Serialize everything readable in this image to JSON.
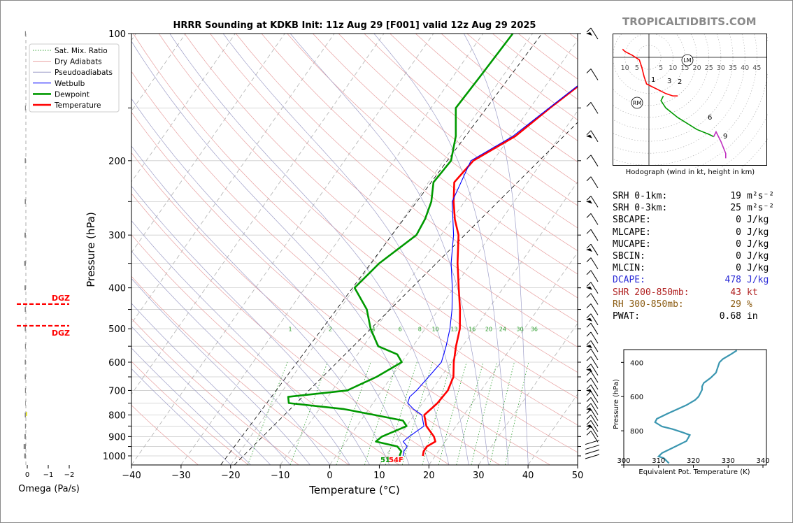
{
  "chart_data": {
    "type": "skew-t",
    "title": "HRRR Sounding at KDKB Init: 11z Aug 29 [F001] valid 12z Aug 29 2025",
    "xlabel": "Temperature (°C)",
    "ylabel": "Pressure (hPa)",
    "xlim": [
      -40,
      50
    ],
    "ylim": [
      1050,
      100
    ],
    "y_log_scale": true,
    "x_ticks": [
      -40,
      -30,
      -20,
      -10,
      0,
      10,
      20,
      30,
      40,
      50
    ],
    "x_tick_labels": [
      "−40",
      "−30",
      "−20",
      "−10",
      "0",
      "10",
      "20",
      "30",
      "40",
      "50"
    ],
    "y_ticks": [
      100,
      200,
      300,
      400,
      500,
      600,
      700,
      800,
      900,
      1000
    ],
    "legend_position": "top-left",
    "legend": [
      {
        "label": "Sat. Mix. Ratio",
        "color": "#2e9e2e"
      },
      {
        "label": "Dry Adiabats",
        "color": "#e8a0a0"
      },
      {
        "label": "Pseudoadiabats",
        "color": "#9e9ec8"
      },
      {
        "label": "Wetbulb",
        "color": "#0000ff"
      },
      {
        "label": "Dewpoint",
        "color": "#009900"
      },
      {
        "label": "Temperature",
        "color": "#ff0000"
      }
    ],
    "mixing_ratio_labels": [
      "1",
      "2",
      "4",
      "6",
      "8",
      "10",
      "13",
      "16",
      "20",
      "24",
      "30",
      "36"
    ],
    "surface_label_T": "54F",
    "surface_label_Td": "51",
    "series": [
      {
        "name": "Temperature",
        "color": "#ff0000",
        "points": [
          [
            1000,
            17.5
          ],
          [
            975,
            17
          ],
          [
            950,
            17
          ],
          [
            925,
            18
          ],
          [
            900,
            17
          ],
          [
            850,
            14
          ],
          [
            800,
            12
          ],
          [
            775,
            12.5
          ],
          [
            750,
            13
          ],
          [
            700,
            13.3
          ],
          [
            650,
            12.5
          ],
          [
            600,
            10.5
          ],
          [
            550,
            8.7
          ],
          [
            500,
            7
          ],
          [
            450,
            4.3
          ],
          [
            400,
            1
          ],
          [
            350,
            -2.7
          ],
          [
            300,
            -6.5
          ],
          [
            275,
            -9.5
          ],
          [
            250,
            -12.2
          ],
          [
            225,
            -14.8
          ],
          [
            200,
            -14
          ],
          [
            175,
            -9
          ],
          [
            150,
            -6
          ],
          [
            125,
            -2
          ],
          [
            100,
            2.2
          ]
        ]
      },
      {
        "name": "Dewpoint",
        "color": "#009900",
        "points": [
          [
            1000,
            12.8
          ],
          [
            975,
            12.5
          ],
          [
            950,
            11
          ],
          [
            925,
            6
          ],
          [
            900,
            6.5
          ],
          [
            850,
            10
          ],
          [
            825,
            8.5
          ],
          [
            800,
            2
          ],
          [
            775,
            -5
          ],
          [
            750,
            -17
          ],
          [
            725,
            -18
          ],
          [
            700,
            -7
          ],
          [
            650,
            -3
          ],
          [
            600,
            0
          ],
          [
            575,
            -2
          ],
          [
            550,
            -7
          ],
          [
            500,
            -11
          ],
          [
            450,
            -14.5
          ],
          [
            400,
            -20
          ],
          [
            350,
            -18.5
          ],
          [
            300,
            -15
          ],
          [
            275,
            -15.5
          ],
          [
            250,
            -16.7
          ],
          [
            225,
            -19
          ],
          [
            200,
            -18.5
          ],
          [
            175,
            -21
          ],
          [
            150,
            -25
          ],
          [
            125,
            -24.5
          ],
          [
            100,
            -24
          ]
        ]
      },
      {
        "name": "Wetbulb",
        "color": "#0000ff",
        "points": [
          [
            1000,
            13.5
          ],
          [
            975,
            13
          ],
          [
            950,
            13
          ],
          [
            925,
            11.5
          ],
          [
            900,
            12
          ],
          [
            850,
            13.5
          ],
          [
            800,
            11.5
          ],
          [
            775,
            9
          ],
          [
            750,
            7
          ],
          [
            725,
            6.5
          ],
          [
            700,
            7
          ],
          [
            650,
            7.5
          ],
          [
            600,
            8
          ],
          [
            550,
            6.7
          ],
          [
            500,
            5
          ],
          [
            450,
            2.7
          ],
          [
            400,
            -0.3
          ],
          [
            350,
            -4
          ],
          [
            300,
            -7.5
          ],
          [
            250,
            -12.5
          ],
          [
            200,
            -14.5
          ],
          [
            175,
            -9.5
          ],
          [
            150,
            -6.2
          ],
          [
            125,
            -2.2
          ],
          [
            100,
            2
          ]
        ]
      }
    ],
    "omega_panel": {
      "xlabel": "Omega (Pa/s)",
      "x_ticks": [
        "0",
        "−1",
        "−2"
      ],
      "dgz_label": "DGZ",
      "dgz_levels_hpa": [
        437,
        492
      ]
    },
    "hodograph": {
      "caption": "Hodograph (wind in kt, height in km)",
      "ring_labels": [
        "10",
        "5",
        "5",
        "10",
        "15",
        "20",
        "25",
        "30",
        "35",
        "40",
        "45"
      ],
      "height_labels": [
        "1",
        "2",
        "3",
        "6",
        "9"
      ],
      "markers": [
        "LM",
        "RM"
      ]
    },
    "theta_e_panel": {
      "xlabel": "Equivalent Pot. Temperature (K)",
      "ylabel": "Pressure (hPa)",
      "x_ticks": [
        300,
        310,
        320,
        330,
        340
      ],
      "y_ticks": [
        400,
        600,
        800,
        1000
      ],
      "xlim": [
        300,
        341
      ],
      "ylim": [
        1000,
        325
      ],
      "color": "#3a96b0",
      "points": [
        [
          990,
          313
        ],
        [
          970,
          312
        ],
        [
          960,
          311.5
        ],
        [
          950,
          310
        ],
        [
          930,
          311
        ],
        [
          900,
          314
        ],
        [
          860,
          318
        ],
        [
          825,
          319
        ],
        [
          810,
          317
        ],
        [
          790,
          314
        ],
        [
          775,
          311
        ],
        [
          750,
          309
        ],
        [
          730,
          309.5
        ],
        [
          700,
          312.5
        ],
        [
          650,
          318
        ],
        [
          620,
          320.5
        ],
        [
          600,
          321.5
        ],
        [
          560,
          322.5
        ],
        [
          540,
          322.5
        ],
        [
          520,
          323
        ],
        [
          490,
          325
        ],
        [
          460,
          326.5
        ],
        [
          430,
          327
        ],
        [
          400,
          327.5
        ],
        [
          380,
          328.5
        ],
        [
          350,
          331
        ],
        [
          330,
          332.5
        ]
      ]
    }
  },
  "branding": {
    "site": "TROPICALTIDBITS.COM"
  },
  "params": [
    {
      "label": "SRH 0-1km:",
      "value": "19",
      "unit": "m²s⁻²",
      "color": "#000000"
    },
    {
      "label": "SRH 0-3km:",
      "value": "25",
      "unit": "m²s⁻²",
      "color": "#000000"
    },
    {
      "label": "SBCAPE:",
      "value": "0",
      "unit": "J/kg",
      "color": "#000000"
    },
    {
      "label": "MLCAPE:",
      "value": "0",
      "unit": "J/kg",
      "color": "#000000"
    },
    {
      "label": "MUCAPE:",
      "value": "0",
      "unit": "J/kg",
      "color": "#000000"
    },
    {
      "label": "SBCIN:",
      "value": "0",
      "unit": "J/kg",
      "color": "#000000"
    },
    {
      "label": "MLCIN:",
      "value": "0",
      "unit": "J/kg",
      "color": "#000000"
    },
    {
      "label": "DCAPE:",
      "value": "478",
      "unit": "J/kg",
      "color": "#2b2bd6"
    },
    {
      "label": "SHR 200-850mb:",
      "value": "43",
      "unit": "kt",
      "color": "#b02020"
    },
    {
      "label": "RH 300-850mb:",
      "value": "29",
      "unit": "%",
      "color": "#8a5a10"
    },
    {
      "label": "PWAT:",
      "value": "0.68",
      "unit": "in",
      "color": "#000000"
    }
  ]
}
